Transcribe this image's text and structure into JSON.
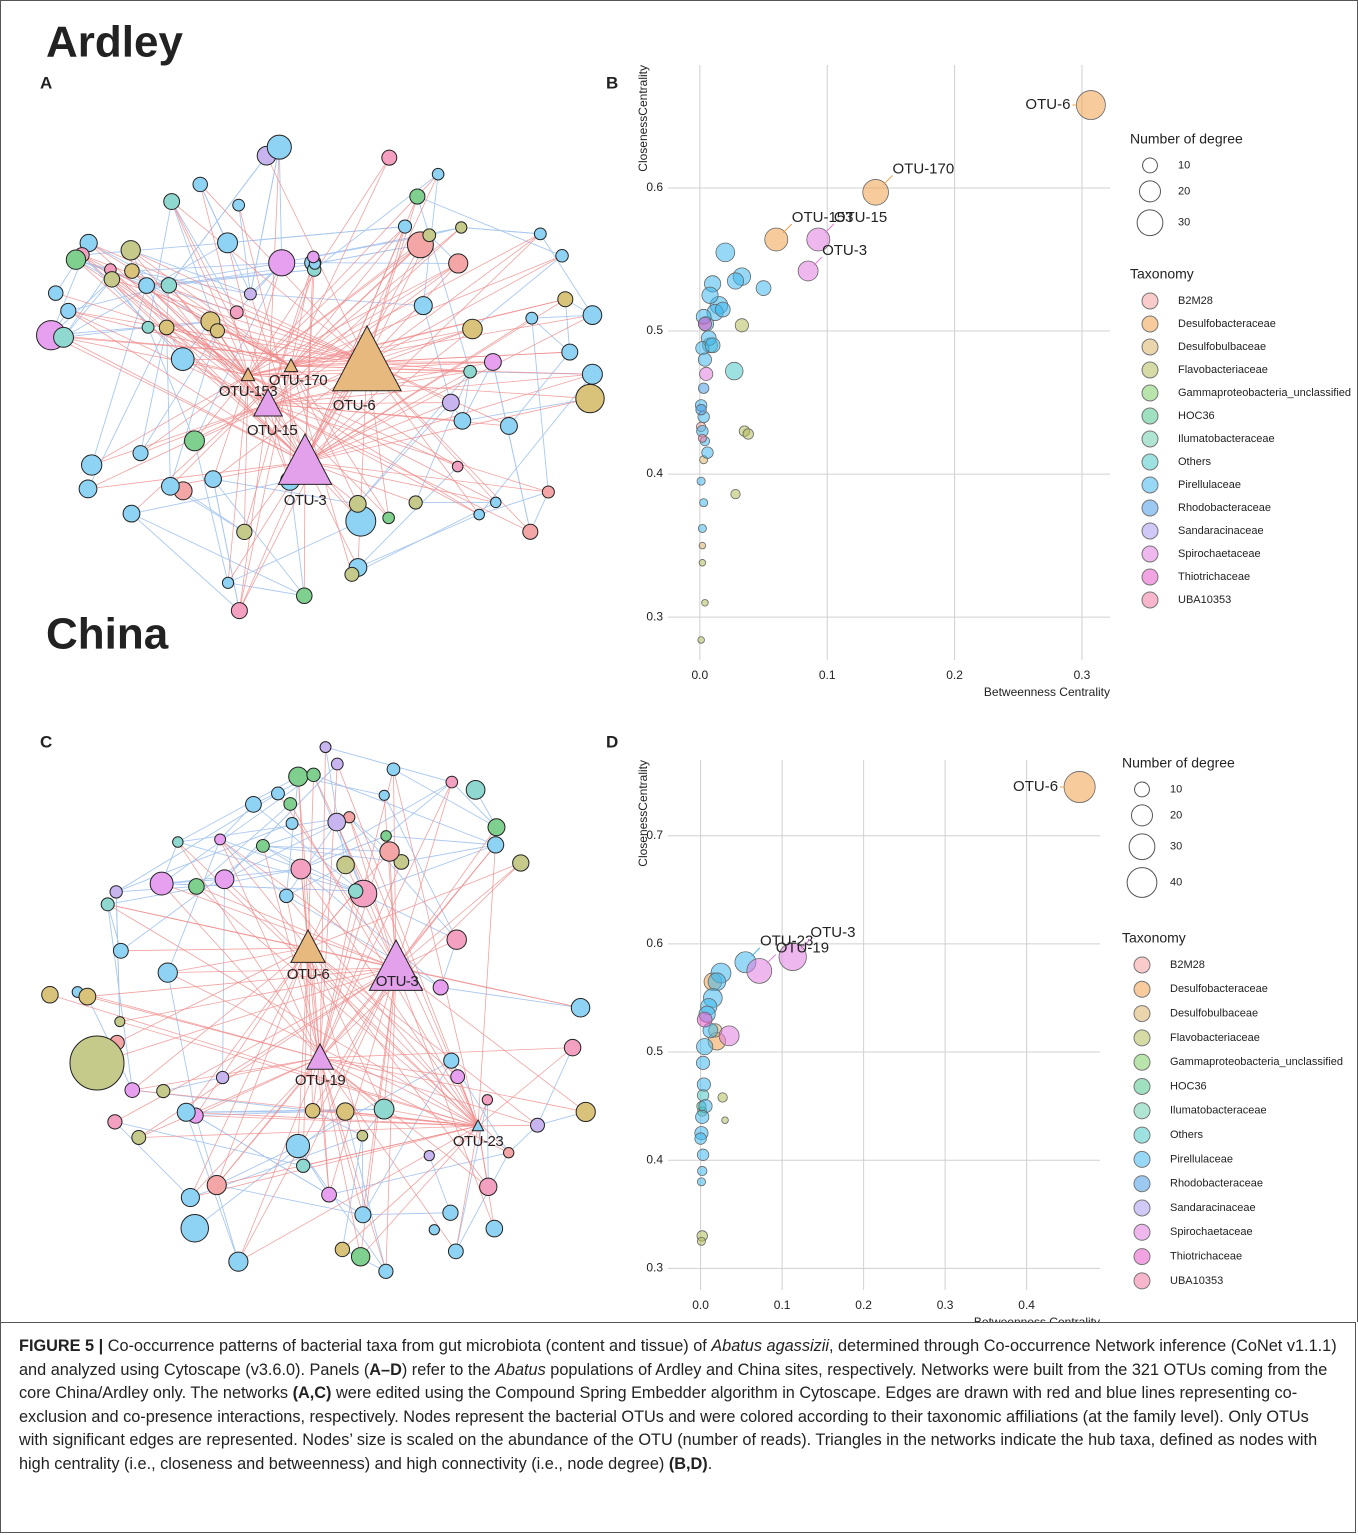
{
  "sections": [
    "Ardley",
    "China"
  ],
  "networks": [
    {
      "panel": "A",
      "hub_labels": [
        "OTU-153",
        "OTU-170",
        "OTU-6",
        "OTU-15",
        "OTU-3"
      ]
    },
    {
      "panel": "C",
      "hub_labels": [
        "OTU-6",
        "OTU-3",
        "OTU-19",
        "OTU-23"
      ]
    }
  ],
  "chart_data": [
    {
      "panel": "B",
      "type": "scatter",
      "xlabel": "Betweenness Centrality",
      "ylabel": "ClosenessCentrality",
      "xlim": [
        -0.025,
        0.322
      ],
      "ylim": [
        0.27,
        0.686
      ],
      "xticks": [
        {
          "value": 0,
          "label": "0.0"
        },
        0.1,
        0.2,
        0.3
      ],
      "yticks": [
        0.3,
        0.4,
        0.5,
        0.6
      ],
      "grid": true,
      "size_legend_title": "Number of degree",
      "size_legend": [
        10,
        20,
        30
      ],
      "legend_title": "Taxonomy",
      "series": [
        {
          "name": "B2M28",
          "color": "#f4a0a0",
          "x": [
            0.001
          ],
          "values": [
            0.433
          ],
          "sizes": [
            4
          ],
          "labels": [
            null
          ]
        },
        {
          "name": "Desulfobacteraceae",
          "color": "#f0a04b",
          "x": [
            0.307,
            0.138,
            0.06
          ],
          "values": [
            0.658,
            0.597,
            0.564
          ],
          "sizes": [
            38,
            30,
            24
          ],
          "labels": [
            "OTU-6",
            "OTU-170",
            "OTU-153"
          ]
        },
        {
          "name": "Desulfobulbaceae",
          "color": "#d9b36a",
          "x": [
            0.002,
            0.003
          ],
          "values": [
            0.35,
            0.41
          ],
          "sizes": [
            2,
            3
          ],
          "labels": [
            null,
            null
          ]
        },
        {
          "name": "Flavobacteriaceae",
          "color": "#b5bb5a",
          "x": [
            0.033,
            0.035,
            0.038,
            0.028,
            0.002,
            0.004,
            0.001
          ],
          "values": [
            0.504,
            0.43,
            0.428,
            0.386,
            0.338,
            0.31,
            0.284
          ],
          "sizes": [
            8,
            5,
            5,
            4,
            2,
            2,
            2
          ],
          "labels": [
            null,
            null,
            null,
            null,
            null,
            null,
            null
          ]
        },
        {
          "name": "Gammaproteobacteria_unclassified",
          "color": "#7fcf6a",
          "x": [],
          "values": [],
          "sizes": [],
          "labels": []
        },
        {
          "name": "HOC36",
          "color": "#4fc78a",
          "x": [],
          "values": [],
          "sizes": [],
          "labels": []
        },
        {
          "name": "Ilumatobacteraceae",
          "color": "#6fcfb0",
          "x": [],
          "values": [],
          "sizes": [],
          "labels": []
        },
        {
          "name": "Others",
          "color": "#4fc8c8",
          "x": [
            0.027,
            0.008
          ],
          "values": [
            0.472,
            0.49
          ],
          "sizes": [
            14,
            10
          ],
          "labels": [
            null,
            null
          ]
        },
        {
          "name": "Pirellulaceae",
          "color": "#3fb8ee",
          "x": [
            0.02,
            0.033,
            0.05,
            0.028,
            0.01,
            0.015,
            0.008,
            0.012,
            0.005,
            0.003,
            0.018,
            0.007,
            0.002,
            0.004,
            0.01,
            0.001,
            0.003,
            0.002,
            0.006,
            0.004,
            0.001,
            0.002,
            0.003
          ],
          "values": [
            0.555,
            0.538,
            0.53,
            0.535,
            0.533,
            0.518,
            0.525,
            0.513,
            0.505,
            0.51,
            0.515,
            0.495,
            0.488,
            0.48,
            0.49,
            0.448,
            0.44,
            0.43,
            0.415,
            0.423,
            0.395,
            0.362,
            0.38
          ],
          "sizes": [
            16,
            14,
            10,
            12,
            12,
            14,
            12,
            12,
            10,
            10,
            10,
            10,
            8,
            8,
            10,
            6,
            6,
            6,
            6,
            4,
            3,
            3,
            3
          ],
          "labels": [
            null,
            null,
            null,
            null,
            null,
            null,
            null,
            null,
            null,
            null,
            null,
            null,
            null,
            null,
            null,
            null,
            null,
            null,
            null,
            null,
            null,
            null,
            null
          ]
        },
        {
          "name": "Rhodobacteraceae",
          "color": "#4a9de8",
          "x": [
            0.001,
            0.003
          ],
          "values": [
            0.445,
            0.46
          ],
          "sizes": [
            5,
            5
          ],
          "labels": [
            null,
            null
          ]
        },
        {
          "name": "Sandaracinaceae",
          "color": "#a99bef",
          "x": [],
          "values": [],
          "sizes": [],
          "labels": []
        },
        {
          "name": "Spirochaetaceae",
          "color": "#e07ee0",
          "x": [
            0.093,
            0.085,
            0.005
          ],
          "values": [
            0.564,
            0.542,
            0.47
          ],
          "sizes": [
            24,
            18,
            8
          ],
          "labels": [
            "OTU-15",
            "OTU-3",
            null
          ]
        },
        {
          "name": "Thiotrichaceae",
          "color": "#e858c8",
          "x": [
            0.004
          ],
          "values": [
            0.505
          ],
          "sizes": [
            8
          ],
          "labels": [
            null
          ]
        },
        {
          "name": "UBA10353",
          "color": "#f07aa0",
          "x": [
            0.002
          ],
          "values": [
            0.425
          ],
          "sizes": [
            3
          ],
          "labels": [
            null
          ]
        }
      ]
    },
    {
      "panel": "D",
      "type": "scatter",
      "xlabel": "Betweenness Centrality",
      "ylabel": "ClosenessCentrality",
      "xlim": [
        -0.04,
        0.49
      ],
      "ylim": [
        0.28,
        0.77
      ],
      "xticks": [
        {
          "value": 0,
          "label": "0.0"
        },
        0.1,
        0.2,
        0.3,
        0.4
      ],
      "yticks": [
        0.3,
        {
          "value": 0.4,
          "label": "0.4"
        },
        0.5,
        0.6,
        0.7
      ],
      "grid": true,
      "size_legend_title": "Number of degree",
      "size_legend": [
        10,
        20,
        30,
        40
      ],
      "legend_title": "Taxonomy",
      "series": [
        {
          "name": "B2M28",
          "color": "#f4a0a0",
          "x": [],
          "values": [],
          "sizes": [],
          "labels": []
        },
        {
          "name": "Desulfobacteraceae",
          "color": "#f0a04b",
          "x": [
            0.465,
            0.02,
            0.015
          ],
          "values": [
            0.745,
            0.51,
            0.565
          ],
          "sizes": [
            44,
            14,
            14
          ],
          "labels": [
            "OTU-6",
            null,
            null
          ]
        },
        {
          "name": "Desulfobulbaceae",
          "color": "#d9b36a",
          "x": [
            0.018
          ],
          "values": [
            0.52
          ],
          "sizes": [
            8
          ],
          "labels": [
            null
          ]
        },
        {
          "name": "Flavobacteriaceae",
          "color": "#b5bb5a",
          "x": [
            0.027,
            0.002,
            0.001,
            0.03
          ],
          "values": [
            0.458,
            0.33,
            0.325,
            0.437
          ],
          "sizes": [
            4,
            5,
            3,
            2
          ],
          "labels": [
            null,
            null,
            null,
            null
          ]
        },
        {
          "name": "Gammaproteobacteria_unclassified",
          "color": "#7fcf6a",
          "x": [
            0.002
          ],
          "values": [
            0.445
          ],
          "sizes": [
            4
          ],
          "labels": [
            null
          ]
        },
        {
          "name": "HOC36",
          "color": "#4fc78a",
          "x": [
            0.001
          ],
          "values": [
            0.45
          ],
          "sizes": [
            4
          ],
          "labels": [
            null
          ]
        },
        {
          "name": "Ilumatobacteraceae",
          "color": "#6fcfb0",
          "x": [],
          "values": [],
          "sizes": [],
          "labels": []
        },
        {
          "name": "Others",
          "color": "#4fc8c8",
          "x": [
            0.003
          ],
          "values": [
            0.46
          ],
          "sizes": [
            6
          ],
          "labels": [
            null
          ]
        },
        {
          "name": "Pirellulaceae",
          "color": "#3fb8ee",
          "x": [
            0.055,
            0.025,
            0.02,
            0.015,
            0.01,
            0.008,
            0.012,
            0.005,
            0.003,
            0.004,
            0.006,
            0.002,
            0.001,
            0.003,
            0.002,
            0.001,
            0.0
          ],
          "values": [
            0.583,
            0.573,
            0.565,
            0.55,
            0.542,
            0.535,
            0.52,
            0.505,
            0.49,
            0.47,
            0.45,
            0.44,
            0.425,
            0.405,
            0.39,
            0.38,
            0.42
          ],
          "sizes": [
            20,
            18,
            14,
            16,
            12,
            12,
            10,
            12,
            8,
            8,
            8,
            8,
            8,
            6,
            4,
            3,
            6
          ],
          "labels": [
            "OTU-23",
            null,
            null,
            null,
            null,
            null,
            null,
            null,
            null,
            null,
            null,
            null,
            null,
            null,
            null,
            null,
            null
          ]
        },
        {
          "name": "Rhodobacteraceae",
          "color": "#4a9de8",
          "x": [],
          "values": [],
          "sizes": [],
          "labels": []
        },
        {
          "name": "Sandaracinaceae",
          "color": "#a99bef",
          "x": [],
          "values": [],
          "sizes": [],
          "labels": []
        },
        {
          "name": "Spirochaetaceae",
          "color": "#e07ee0",
          "x": [
            0.113,
            0.072,
            0.035
          ],
          "values": [
            0.588,
            0.575,
            0.515
          ],
          "sizes": [
            34,
            28,
            18
          ],
          "labels": [
            "OTU-3",
            "OTU-19",
            null
          ]
        },
        {
          "name": "Thiotrichaceae",
          "color": "#e858c8",
          "x": [
            0.005
          ],
          "values": [
            0.53
          ],
          "sizes": [
            10
          ],
          "labels": [
            null
          ]
        },
        {
          "name": "UBA10353",
          "color": "#f07aa0",
          "x": [],
          "values": [],
          "sizes": [],
          "labels": []
        }
      ]
    }
  ],
  "caption": [
    {
      "text": "FIGURE 5 |",
      "style": "bold"
    },
    {
      "text": " Co-occurrence patterns of bacterial taxa from gut microbiota (content and tissue) of "
    },
    {
      "text": "Abatus agassizii",
      "style": "italic"
    },
    {
      "text": ", determined through Co-occurrence Network inference (CoNet v1.1.1) and analyzed using Cytoscape (v3.6.0). Panels ("
    },
    {
      "text": "A–D",
      "style": "bold"
    },
    {
      "text": ") refer to the "
    },
    {
      "text": "Abatus",
      "style": "italic"
    },
    {
      "text": " populations of Ardley and China sites, respectively. Networks were built from the 321 OTUs coming from the core China/Ardley only. The networks "
    },
    {
      "text": "(A,C)",
      "style": "bold"
    },
    {
      "text": " were edited using the Compound Spring Embedder algorithm in Cytoscape. Edges are drawn with red and blue lines representing co-exclusion and co-presence interactions, respectively. Nodes represent the bacterial OTUs and were colored according to their taxonomic affiliations (at the family level). Only OTUs with significant edges are represented. Nodes’ size is scaled on the abundance of the OTU (number of reads). Triangles in the networks indicate the hub taxa, defined as nodes with high centrality (i.e., closeness and betweenness) and high connectivity (i.e., node degree) "
    },
    {
      "text": "(B,D)",
      "style": "bold"
    },
    {
      "text": "."
    }
  ]
}
